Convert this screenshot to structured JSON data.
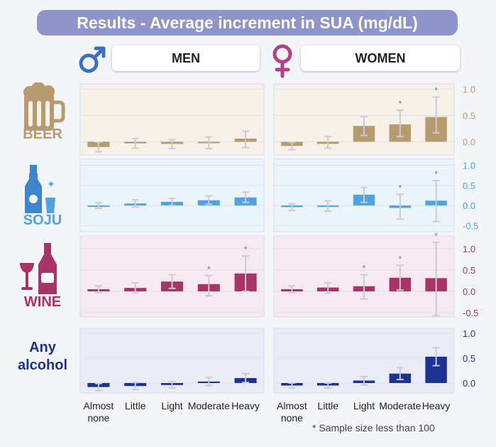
{
  "title": "Results - Average increment in SUA (mg/dL)",
  "panels": [
    {
      "label": "MEN"
    },
    {
      "label": "WOMEN"
    }
  ],
  "beverages": [
    {
      "lines": [
        "BEER"
      ],
      "color": "#b79a6e",
      "bg": "#f6f1e9"
    },
    {
      "lines": [
        "SOJU"
      ],
      "color": "#4ea3e0",
      "bg": "#ecf4fb"
    },
    {
      "lines": [
        "WINE"
      ],
      "color": "#a83367",
      "bg": "#f6e9ef"
    },
    {
      "lines": [
        "Any",
        "alcohol"
      ],
      "color": "#1e3291",
      "bg": "#e9ecf6"
    }
  ],
  "footnote": "* Sample size less than 100",
  "star": "*",
  "chart_data": [
    {
      "type": "bar",
      "title": "Beer",
      "ylabel": "Average increment in SUA (mg/dL)",
      "categories": [
        "Almost none",
        "Little",
        "Light",
        "Moderate",
        "Heavy"
      ],
      "ylim": [
        -0.25,
        1.1
      ],
      "yticks": [
        "1.0",
        "0.5",
        "0.0"
      ],
      "yticks_values": [
        1.0,
        0.5,
        0.0
      ],
      "color": "#b79a6e",
      "series": [
        {
          "name": "MEN",
          "values": [
            -0.1,
            -0.03,
            -0.04,
            -0.02,
            0.06
          ],
          "ci_low": [
            -0.19,
            -0.12,
            -0.13,
            -0.13,
            -0.11
          ],
          "ci_high": [
            -0.01,
            0.06,
            0.04,
            0.09,
            0.2
          ],
          "small_sample": [
            false,
            false,
            false,
            false,
            false
          ]
        },
        {
          "name": "WOMEN",
          "values": [
            -0.08,
            -0.04,
            0.3,
            0.33,
            0.47
          ],
          "ci_low": [
            -0.15,
            -0.12,
            0.12,
            0.1,
            0.17
          ],
          "ci_high": [
            -0.01,
            0.1,
            0.48,
            0.6,
            0.85
          ],
          "small_sample": [
            false,
            false,
            false,
            true,
            true
          ]
        }
      ]
    },
    {
      "type": "bar",
      "title": "Soju",
      "ylabel": "Average increment in SUA (mg/dL)",
      "categories": [
        "Almost none",
        "Little",
        "Light",
        "Moderate",
        "Heavy"
      ],
      "ylim": [
        -0.65,
        1.15
      ],
      "yticks": [
        "1.0",
        "0.5",
        "0.0",
        "-0.5"
      ],
      "yticks_values": [
        1.0,
        0.5,
        0.0,
        -0.5
      ],
      "color": "#4ea3e0",
      "series": [
        {
          "name": "MEN",
          "values": [
            0.0,
            0.05,
            0.09,
            0.13,
            0.2
          ],
          "ci_low": [
            -0.07,
            -0.04,
            0.0,
            0.03,
            0.08
          ],
          "ci_high": [
            0.07,
            0.14,
            0.18,
            0.24,
            0.33
          ],
          "small_sample": [
            false,
            false,
            false,
            false,
            false
          ]
        },
        {
          "name": "WOMEN",
          "values": [
            -0.04,
            -0.01,
            0.27,
            -0.06,
            0.12
          ],
          "ci_low": [
            -0.12,
            -0.14,
            0.08,
            -0.34,
            -0.4
          ],
          "ci_high": [
            0.04,
            0.12,
            0.45,
            0.28,
            0.62
          ],
          "small_sample": [
            false,
            false,
            false,
            true,
            true
          ]
        }
      ]
    },
    {
      "type": "bar",
      "title": "Wine",
      "ylabel": "Average increment in SUA (mg/dL)",
      "categories": [
        "Almost none",
        "Little",
        "Light",
        "Moderate",
        "Heavy"
      ],
      "ylim": [
        -0.6,
        1.3
      ],
      "yticks": [
        "1.0",
        "0.5",
        "0.0",
        "-0.5"
      ],
      "yticks_values": [
        1.0,
        0.5,
        0.0,
        -0.5
      ],
      "color": "#a83367",
      "series": [
        {
          "name": "MEN",
          "values": [
            0.05,
            0.08,
            0.23,
            0.17,
            0.42
          ],
          "ci_low": [
            -0.03,
            -0.03,
            0.07,
            -0.1,
            0.0
          ],
          "ci_high": [
            0.13,
            0.2,
            0.39,
            0.37,
            0.83
          ],
          "small_sample": [
            false,
            false,
            false,
            true,
            true
          ]
        },
        {
          "name": "WOMEN",
          "values": [
            0.05,
            0.09,
            0.12,
            0.32,
            0.31
          ],
          "ci_low": [
            -0.03,
            -0.04,
            -0.18,
            0.03,
            -0.57
          ],
          "ci_high": [
            0.13,
            0.2,
            0.39,
            0.61,
            1.15
          ],
          "small_sample": [
            false,
            false,
            true,
            true,
            true
          ]
        }
      ]
    },
    {
      "type": "bar",
      "title": "Any alcohol",
      "ylabel": "Average increment in SUA (mg/dL)",
      "categories": [
        "Almost none",
        "Little",
        "Light",
        "Moderate",
        "Heavy"
      ],
      "ylim": [
        -0.2,
        1.1
      ],
      "yticks": [
        "1.0",
        "0.5",
        "0.0"
      ],
      "yticks_values": [
        1.0,
        0.5,
        0.0
      ],
      "color": "#1e3291",
      "series": [
        {
          "name": "MEN",
          "values": [
            -0.08,
            -0.06,
            -0.04,
            0.03,
            0.1
          ],
          "ci_low": [
            -0.15,
            -0.13,
            -0.1,
            -0.05,
            0.01
          ],
          "ci_high": [
            -0.01,
            0.01,
            0.03,
            0.11,
            0.19
          ],
          "small_sample": [
            false,
            false,
            false,
            false,
            false
          ]
        },
        {
          "name": "WOMEN",
          "values": [
            -0.05,
            -0.05,
            0.05,
            0.19,
            0.53
          ],
          "ci_low": [
            -0.1,
            -0.1,
            -0.04,
            0.07,
            0.35
          ],
          "ci_high": [
            0.0,
            0.0,
            0.13,
            0.31,
            0.71
          ],
          "small_sample": [
            false,
            false,
            false,
            false,
            false
          ]
        }
      ]
    }
  ]
}
